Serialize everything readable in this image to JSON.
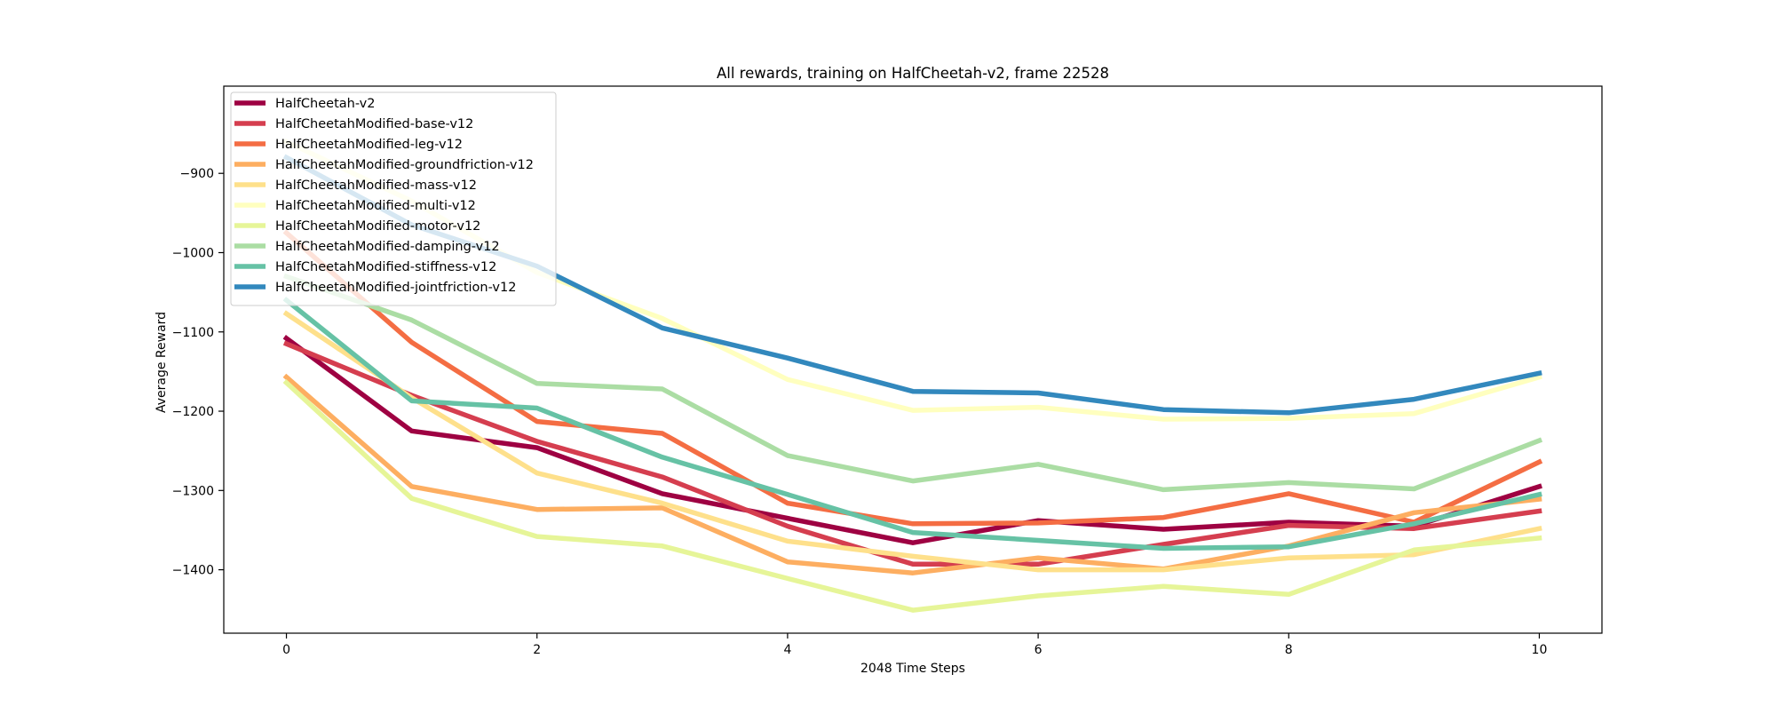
{
  "chart_data": {
    "type": "line",
    "title": "All rewards, training on HalfCheetah-v2, frame 22528",
    "xlabel": "2048 Time Steps",
    "ylabel": "Average Reward",
    "xlim": [
      -0.5,
      10.5
    ],
    "ylim": [
      -1480,
      -790
    ],
    "xticks": [
      0,
      2,
      4,
      6,
      8,
      10
    ],
    "yticks": [
      -900,
      -1000,
      -1100,
      -1200,
      -1300,
      -1400
    ],
    "grid": false,
    "legend_position": "top-left",
    "x": [
      0,
      1,
      2,
      3,
      4,
      5,
      6,
      7,
      8,
      9,
      10
    ],
    "series": [
      {
        "name": "HalfCheetah-v2",
        "color": "#9e0142",
        "values": [
          -1108,
          -1225,
          -1246,
          -1304,
          -1335,
          -1366,
          -1338,
          -1349,
          -1340,
          -1345,
          -1295
        ]
      },
      {
        "name": "HalfCheetahModified-base-v12",
        "color": "#d53e4f",
        "values": [
          -1115,
          -1180,
          -1238,
          -1283,
          -1345,
          -1393,
          -1393,
          -1368,
          -1344,
          -1348,
          -1326
        ]
      },
      {
        "name": "HalfCheetahModified-leg-v12",
        "color": "#f46d43",
        "values": [
          -975,
          -1113,
          -1213,
          -1228,
          -1316,
          -1342,
          -1341,
          -1334,
          -1304,
          -1340,
          -1264
        ]
      },
      {
        "name": "HalfCheetahModified-groundfriction-v12",
        "color": "#fdae61",
        "values": [
          -1157,
          -1295,
          -1324,
          -1322,
          -1390,
          -1404,
          -1385,
          -1399,
          -1370,
          -1328,
          -1311
        ]
      },
      {
        "name": "HalfCheetahModified-mass-v12",
        "color": "#fee08b",
        "values": [
          -1077,
          -1183,
          -1278,
          -1316,
          -1364,
          -1383,
          -1400,
          -1400,
          -1385,
          -1381,
          -1348
        ]
      },
      {
        "name": "HalfCheetahModified-multi-v12",
        "color": "#ffffbf",
        "values": [
          -860,
          -935,
          -1025,
          -1083,
          -1160,
          -1199,
          -1195,
          -1210,
          -1209,
          -1203,
          -1157
        ]
      },
      {
        "name": "HalfCheetahModified-motor-v12",
        "color": "#e6f598",
        "values": [
          -1164,
          -1310,
          -1358,
          -1370,
          -1411,
          -1451,
          -1433,
          -1421,
          -1431,
          -1375,
          -1360
        ]
      },
      {
        "name": "HalfCheetahModified-damping-v12",
        "color": "#abdda4",
        "values": [
          -1030,
          -1085,
          -1165,
          -1172,
          -1256,
          -1288,
          -1267,
          -1299,
          -1290,
          -1298,
          -1237
        ]
      },
      {
        "name": "HalfCheetahModified-stiffness-v12",
        "color": "#66c2a5",
        "values": [
          -1060,
          -1187,
          -1196,
          -1258,
          -1305,
          -1353,
          -1363,
          -1373,
          -1371,
          -1342,
          -1305
        ]
      },
      {
        "name": "HalfCheetahModified-jointfriction-v12",
        "color": "#3288bd",
        "values": [
          -880,
          -965,
          -1017,
          -1095,
          -1133,
          -1175,
          -1177,
          -1198,
          -1202,
          -1185,
          -1152
        ]
      }
    ]
  }
}
